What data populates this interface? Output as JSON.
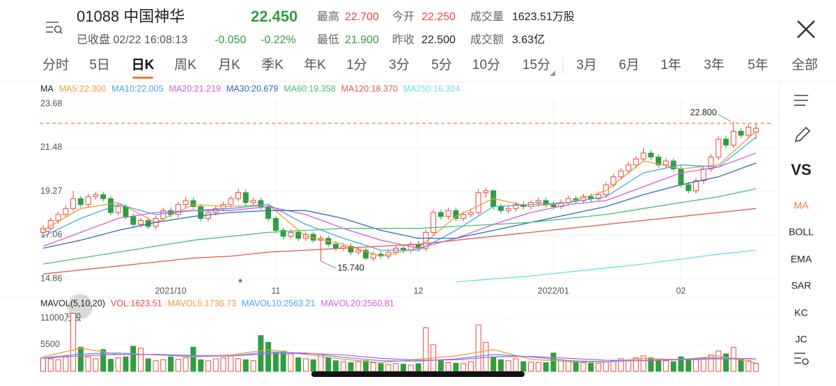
{
  "header": {
    "name": "01088 中国神华",
    "price": "22.450",
    "price_color": "#2f9e3f",
    "status": "已收盘 02/22 16:08:13",
    "change": "-0.050",
    "change_pct": "-0.22%",
    "change_color": "#2f9e3f",
    "stats": [
      [
        {
          "label": "最高",
          "value": "22.700",
          "color": "#e8473f"
        },
        {
          "label": "今开",
          "value": "22.250",
          "color": "#e8473f"
        },
        {
          "label": "成交量",
          "value": "1623.51万股",
          "color": "#222"
        }
      ],
      [
        {
          "label": "最低",
          "value": "21.900",
          "color": "#2f9e3f"
        },
        {
          "label": "昨收",
          "value": "22.500",
          "color": "#222"
        },
        {
          "label": "成交额",
          "value": "3.63亿",
          "color": "#222"
        }
      ]
    ]
  },
  "tabs": [
    "分时",
    "5日",
    "日K",
    "周K",
    "月K",
    "季K",
    "年K",
    "1分",
    "3分",
    "5分",
    "10分",
    "15分"
  ],
  "tab_selected": 2,
  "range_tabs": [
    "3月",
    "6月",
    "1年",
    "3年",
    "5年",
    "全部"
  ],
  "sidebar": {
    "items": [
      "VS",
      "MA",
      "BOLL",
      "EMA",
      "SAR",
      "KC",
      "JC"
    ],
    "selected": 1
  },
  "chart_data": [
    {
      "type": "candlestick",
      "legend_title": "MA",
      "up_color": "#e8473f",
      "down_color": "#2f9e3f",
      "categories": [
        null,
        null,
        null,
        null,
        null,
        null,
        null,
        null,
        null,
        null,
        null,
        null,
        null,
        null,
        null,
        null,
        null,
        "2021/10",
        null,
        null,
        null,
        null,
        null,
        null,
        null,
        null,
        null,
        null,
        null,
        null,
        null,
        "11",
        null,
        null,
        null,
        null,
        null,
        null,
        null,
        null,
        null,
        null,
        null,
        null,
        null,
        null,
        null,
        null,
        null,
        null,
        "12",
        null,
        null,
        null,
        null,
        null,
        null,
        null,
        null,
        null,
        null,
        null,
        null,
        null,
        null,
        null,
        null,
        null,
        "2022/01",
        null,
        null,
        null,
        null,
        null,
        null,
        null,
        null,
        null,
        null,
        null,
        null,
        null,
        null,
        null,
        null,
        "02",
        null,
        null,
        null,
        null,
        null,
        null,
        null,
        null,
        null,
        null
      ],
      "open": [
        17.2,
        17.4,
        17.8,
        18.1,
        18.4,
        18.9,
        18.6,
        19.0,
        19.1,
        18.9,
        18.2,
        18.5,
        18.0,
        17.6,
        17.8,
        17.5,
        17.9,
        18.3,
        18.1,
        18.6,
        18.8,
        18.5,
        17.9,
        18.2,
        18.4,
        18.6,
        18.9,
        19.2,
        18.7,
        18.8,
        18.5,
        17.9,
        17.3,
        17.0,
        17.2,
        16.9,
        17.1,
        16.8,
        16.9,
        16.6,
        16.4,
        16.5,
        16.2,
        16.3,
        15.9,
        16.1,
        16.0,
        16.2,
        16.4,
        16.3,
        16.6,
        16.4,
        17.2,
        18.2,
        18.0,
        18.3,
        17.9,
        18.1,
        18.2,
        19.2,
        19.3,
        18.5,
        18.3,
        18.4,
        18.6,
        18.5,
        18.7,
        18.8,
        18.6,
        18.5,
        18.7,
        18.9,
        18.8,
        19.0,
        18.9,
        19.1,
        19.6,
        20.0,
        20.3,
        20.6,
        20.9,
        21.2,
        21.0,
        20.6,
        20.8,
        20.4,
        19.6,
        19.3,
        19.8,
        20.4,
        21.0,
        21.9,
        21.6,
        22.3,
        22.1,
        22.25
      ],
      "close": [
        17.4,
        17.8,
        18.1,
        18.4,
        18.9,
        18.6,
        19.0,
        19.1,
        18.9,
        18.2,
        18.5,
        18.0,
        17.6,
        17.8,
        17.5,
        17.9,
        18.3,
        18.1,
        18.6,
        18.8,
        18.5,
        17.9,
        18.2,
        18.4,
        18.6,
        18.9,
        19.2,
        18.7,
        18.8,
        18.5,
        17.9,
        17.3,
        17.0,
        17.2,
        16.9,
        17.1,
        16.8,
        16.9,
        16.6,
        16.4,
        16.5,
        16.2,
        16.3,
        15.9,
        16.1,
        16.0,
        16.2,
        16.4,
        16.3,
        16.6,
        16.4,
        17.2,
        18.2,
        18.0,
        18.3,
        17.9,
        18.1,
        18.2,
        19.2,
        19.3,
        18.5,
        18.3,
        18.4,
        18.6,
        18.5,
        18.7,
        18.8,
        18.6,
        18.5,
        18.7,
        18.9,
        18.8,
        19.0,
        18.9,
        19.1,
        19.6,
        20.0,
        20.3,
        20.6,
        20.9,
        21.2,
        21.0,
        20.6,
        20.8,
        20.4,
        19.6,
        19.3,
        19.8,
        20.4,
        21.0,
        21.9,
        21.6,
        22.3,
        22.1,
        22.5,
        22.45
      ],
      "high": [
        17.55,
        17.95,
        18.25,
        18.55,
        19.3,
        19.05,
        19.15,
        19.25,
        19.25,
        19.05,
        18.65,
        18.65,
        18.15,
        17.95,
        17.95,
        18.05,
        18.45,
        18.45,
        18.75,
        19.0,
        18.95,
        18.65,
        18.35,
        18.55,
        18.75,
        19.05,
        19.4,
        19.35,
        18.95,
        18.95,
        18.65,
        18.05,
        17.45,
        17.35,
        17.35,
        17.25,
        17.25,
        17.05,
        17.05,
        16.75,
        16.65,
        16.65,
        16.45,
        16.45,
        16.25,
        16.25,
        16.35,
        16.55,
        16.55,
        16.75,
        16.75,
        17.35,
        18.35,
        18.35,
        18.45,
        18.45,
        18.25,
        18.35,
        19.4,
        19.45,
        19.35,
        18.65,
        18.55,
        18.75,
        18.75,
        18.85,
        18.95,
        18.95,
        18.75,
        18.85,
        19.05,
        19.05,
        19.15,
        19.15,
        19.25,
        19.75,
        20.15,
        20.45,
        20.75,
        21.05,
        21.45,
        21.35,
        21.15,
        20.95,
        20.95,
        20.55,
        19.75,
        19.95,
        20.55,
        21.15,
        22.05,
        22.05,
        22.8,
        22.45,
        22.65,
        22.7
      ],
      "low": [
        17.05,
        17.25,
        17.65,
        17.95,
        18.25,
        18.45,
        18.45,
        18.85,
        18.75,
        18.05,
        18.05,
        17.85,
        17.45,
        17.45,
        17.35,
        17.35,
        17.75,
        17.95,
        17.95,
        18.45,
        18.35,
        17.75,
        17.75,
        18.05,
        18.25,
        18.45,
        18.75,
        18.55,
        18.55,
        18.35,
        17.75,
        17.15,
        16.85,
        16.85,
        16.75,
        16.75,
        16.65,
        15.74,
        16.45,
        16.25,
        16.25,
        16.05,
        16.05,
        15.8,
        15.75,
        15.85,
        15.85,
        16.05,
        16.15,
        16.15,
        16.25,
        16.25,
        17.05,
        17.85,
        17.85,
        17.75,
        17.75,
        17.95,
        18.05,
        18.95,
        18.35,
        18.15,
        18.15,
        18.25,
        18.35,
        18.35,
        18.55,
        18.45,
        18.35,
        18.35,
        18.55,
        18.65,
        18.65,
        18.75,
        18.75,
        18.95,
        19.45,
        19.85,
        20.15,
        20.45,
        20.75,
        20.85,
        20.45,
        20.45,
        20.25,
        19.45,
        19.15,
        19.15,
        19.65,
        20.25,
        20.85,
        21.45,
        21.45,
        21.95,
        21.95,
        21.9
      ],
      "series": [
        {
          "name": "MA5:22.300",
          "color": "#f19a38",
          "x": [
            0,
            5,
            10,
            15,
            20,
            25,
            30,
            35,
            40,
            45,
            50,
            55,
            60,
            65,
            70,
            75,
            80,
            85,
            90,
            95
          ],
          "values": [
            17.3,
            18.4,
            18.7,
            17.7,
            18.6,
            18.5,
            18.6,
            17.0,
            16.6,
            16.0,
            16.4,
            18.0,
            18.9,
            18.5,
            18.7,
            19.3,
            20.8,
            20.4,
            20.6,
            22.3
          ]
        },
        {
          "name": "MA10:22.005",
          "color": "#44a8e6",
          "x": [
            0,
            5,
            10,
            15,
            20,
            25,
            30,
            35,
            40,
            45,
            50,
            55,
            60,
            65,
            70,
            75,
            80,
            85,
            90,
            95
          ],
          "values": [
            17.0,
            17.9,
            18.6,
            18.1,
            18.3,
            18.4,
            18.6,
            17.6,
            16.9,
            16.3,
            16.3,
            17.3,
            18.5,
            18.6,
            18.7,
            19.0,
            20.2,
            20.6,
            20.5,
            22.0
          ]
        },
        {
          "name": "MA20:21.219",
          "color": "#d65ad6",
          "x": [
            0,
            5,
            10,
            15,
            20,
            25,
            30,
            35,
            40,
            45,
            50,
            55,
            60,
            65,
            70,
            75,
            80,
            85,
            90,
            95
          ],
          "values": [
            16.5,
            17.2,
            17.9,
            18.2,
            18.3,
            18.3,
            18.5,
            18.1,
            17.4,
            16.8,
            16.4,
            16.9,
            17.6,
            18.2,
            18.6,
            18.8,
            19.5,
            20.2,
            20.5,
            21.2
          ]
        },
        {
          "name": "MA30:20.679",
          "color": "#2d68c4",
          "x": [
            0,
            5,
            10,
            15,
            20,
            25,
            30,
            35,
            40,
            45,
            50,
            55,
            60,
            65,
            70,
            75,
            80,
            85,
            90,
            95
          ],
          "values": [
            16.4,
            16.8,
            17.3,
            17.7,
            18.0,
            18.2,
            18.3,
            18.3,
            17.9,
            17.3,
            16.9,
            16.9,
            17.3,
            17.7,
            18.1,
            18.5,
            19.1,
            19.6,
            20.0,
            20.7
          ]
        },
        {
          "name": "MA60:19.358",
          "color": "#4dbb7a",
          "x": [
            0,
            5,
            10,
            15,
            20,
            25,
            30,
            35,
            40,
            45,
            50,
            55,
            60,
            65,
            70,
            75,
            80,
            85,
            90,
            95
          ],
          "values": [
            15.6,
            15.9,
            16.2,
            16.5,
            16.8,
            17.0,
            17.2,
            17.3,
            17.4,
            17.4,
            17.4,
            17.5,
            17.6,
            17.7,
            17.9,
            18.1,
            18.4,
            18.7,
            19.0,
            19.4
          ]
        },
        {
          "name": "MA120:18.370",
          "color": "#e05a4a",
          "x": [
            0,
            5,
            10,
            15,
            20,
            25,
            30,
            35,
            40,
            45,
            50,
            55,
            60,
            65,
            70,
            75,
            80,
            85,
            90,
            95
          ],
          "values": [
            15.1,
            15.3,
            15.5,
            15.7,
            15.9,
            16.0,
            16.2,
            16.3,
            16.4,
            16.5,
            16.6,
            16.8,
            17.0,
            17.2,
            17.4,
            17.6,
            17.8,
            18.0,
            18.2,
            18.4
          ]
        },
        {
          "name": "MA250:16.324",
          "color": "#68e0e8",
          "x": [
            0,
            5,
            10,
            15,
            20,
            25,
            30,
            35,
            40,
            45,
            50,
            55,
            60,
            65,
            70,
            75,
            80,
            85,
            90,
            95
          ],
          "values": [
            null,
            null,
            null,
            null,
            null,
            null,
            null,
            null,
            null,
            null,
            null,
            14.7,
            14.85,
            15.0,
            15.2,
            15.4,
            15.6,
            15.85,
            16.1,
            16.3
          ]
        }
      ],
      "ylim": [
        14.58,
        24.0
      ],
      "yticks": [
        23.68,
        21.48,
        19.27,
        17.06,
        14.86
      ],
      "grid": true,
      "price_line": 22.7,
      "price_line_color": "#f07a3a",
      "max_label": "22.800",
      "min_label": "15.740"
    },
    {
      "type": "bar",
      "legend_title": "MAVOL(5,10,20)",
      "vol_label": "VOL:1623.51",
      "vol_label_color": "#e8473f",
      "values": [
        2800,
        2600,
        2400,
        3200,
        12000,
        5000,
        3000,
        2600,
        4500,
        2500,
        2800,
        3000,
        5200,
        4800,
        2600,
        2200,
        2400,
        3000,
        2500,
        2800,
        5000,
        2400,
        2200,
        2600,
        2800,
        3200,
        2600,
        2400,
        2200,
        7400,
        6000,
        3800,
        4200,
        3600,
        2800,
        2600,
        2400,
        3600,
        2800,
        2200,
        2000,
        1800,
        2000,
        2200,
        1800,
        1600,
        1400,
        1600,
        1500,
        1300,
        1600,
        9000,
        5500,
        2200,
        1800,
        1700,
        1600,
        2000,
        9600,
        6000,
        3000,
        2400,
        2200,
        2600,
        2000,
        1900,
        1800,
        1800,
        3800,
        2400,
        2200,
        2000,
        1800,
        1700,
        1600,
        2000,
        2200,
        2600,
        2400,
        2800,
        3200,
        2800,
        2400,
        2200,
        2000,
        3000,
        2600,
        2400,
        2800,
        3400,
        4200,
        3600,
        5000,
        2600,
        2200,
        1623.51
      ],
      "series": [
        {
          "name": "MAVOL5:1736.73",
          "color": "#f19a38",
          "x": [
            0,
            5,
            10,
            15,
            20,
            25,
            30,
            35,
            40,
            45,
            50,
            55,
            60,
            65,
            70,
            75,
            80,
            85,
            90,
            95
          ],
          "values": [
            3000,
            4800,
            3500,
            3500,
            3000,
            3400,
            4500,
            3500,
            2500,
            1800,
            2500,
            3200,
            4500,
            2500,
            2000,
            1900,
            2700,
            2400,
            3200,
            1736.73
          ]
        },
        {
          "name": "MAVOL10:2563.21",
          "color": "#44a8e6",
          "x": [
            0,
            5,
            10,
            15,
            20,
            25,
            30,
            35,
            40,
            45,
            50,
            55,
            60,
            65,
            70,
            75,
            80,
            85,
            90,
            95
          ],
          "values": [
            2800,
            3600,
            3800,
            3400,
            3100,
            3200,
            4000,
            3800,
            2900,
            2200,
            2100,
            2600,
            3500,
            3000,
            2200,
            2000,
            2300,
            2500,
            2800,
            2563.21
          ]
        },
        {
          "name": "MAVOL20:2560.81",
          "color": "#d65ad6",
          "x": [
            0,
            5,
            10,
            15,
            20,
            25,
            30,
            35,
            40,
            45,
            50,
            55,
            60,
            65,
            70,
            75,
            80,
            85,
            90,
            95
          ],
          "values": [
            2700,
            3200,
            3500,
            3500,
            3300,
            3200,
            3600,
            3700,
            3400,
            2700,
            2300,
            2400,
            3000,
            3100,
            2700,
            2300,
            2200,
            2400,
            2600,
            2560.81
          ]
        }
      ],
      "ylim": [
        0,
        12100
      ],
      "yticks": [
        {
          "value": 11000,
          "label": "11000万股"
        },
        5500
      ],
      "grid": true
    }
  ]
}
